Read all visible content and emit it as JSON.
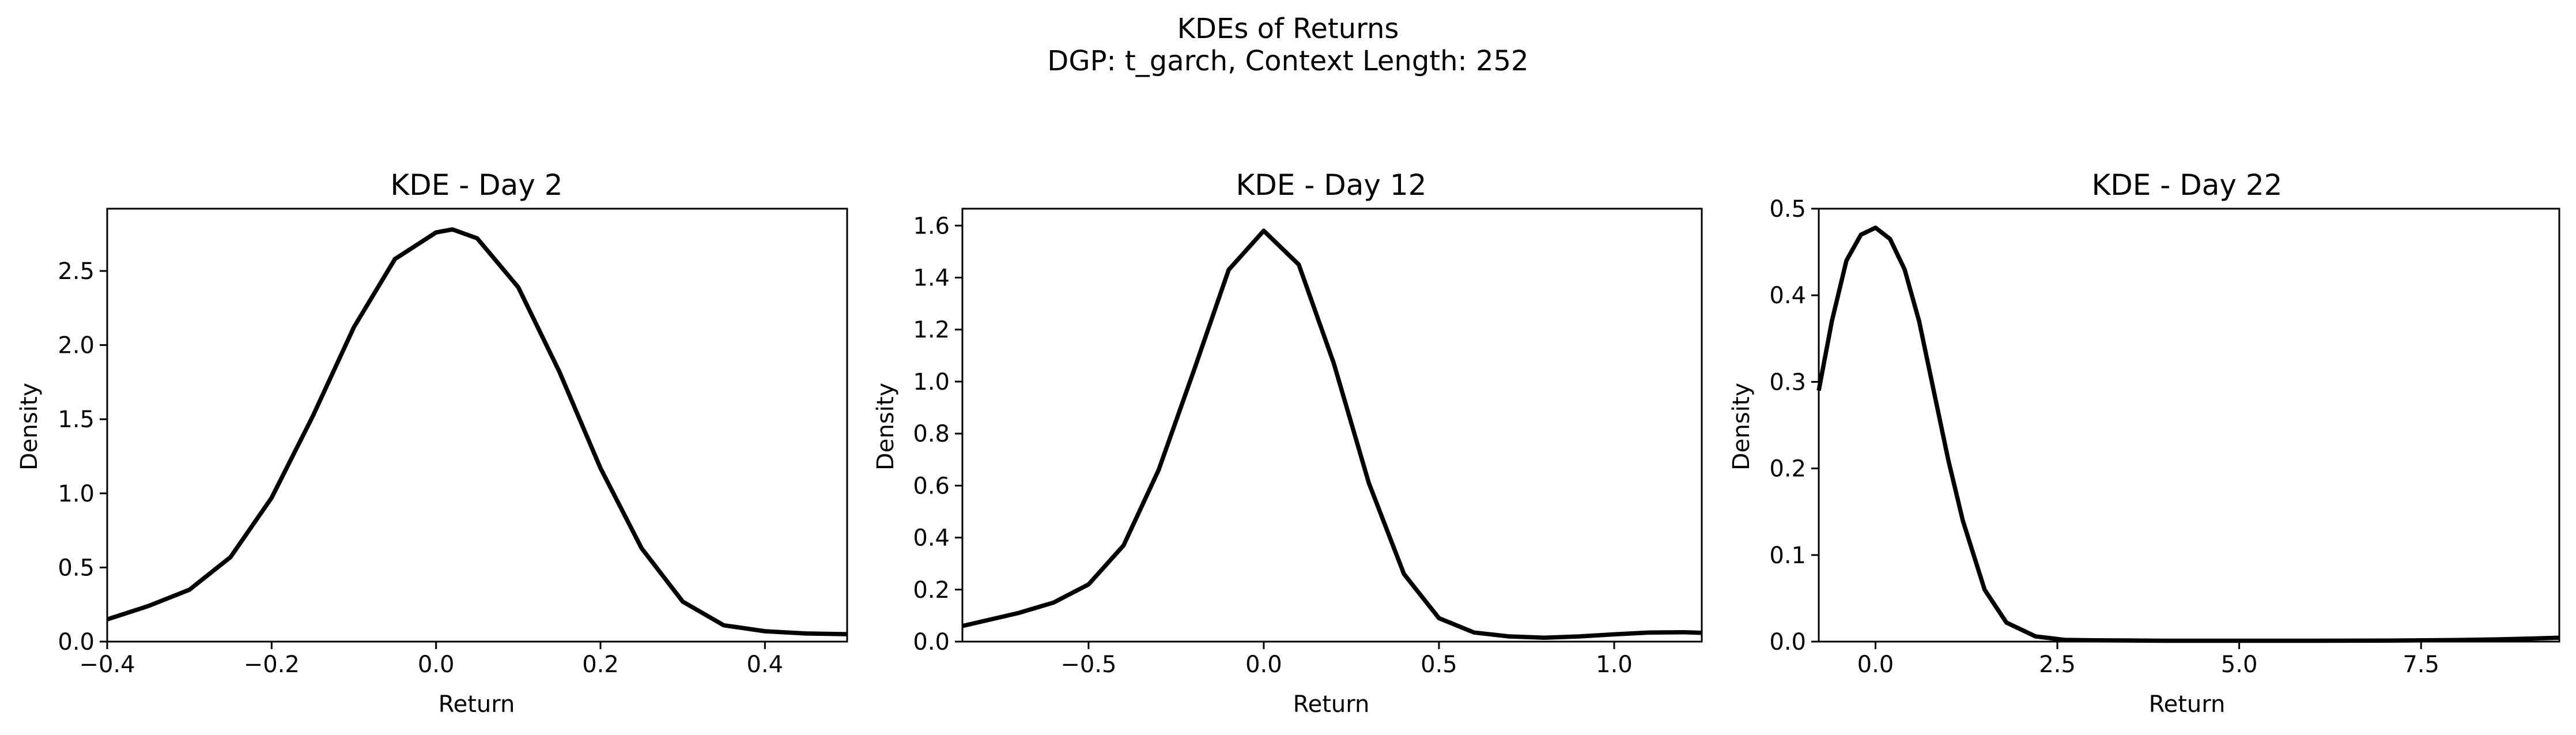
{
  "figure": {
    "title_line1": "KDEs of Returns",
    "title_line2": "DGP: t_garch, Context Length: 252"
  },
  "chart_data": [
    {
      "type": "line",
      "title": "KDE - Day 2",
      "xlabel": "Return",
      "ylabel": "Density",
      "xlim": [
        -0.4,
        0.5
      ],
      "ylim": [
        0,
        2.92
      ],
      "xticks": [
        -0.4,
        -0.2,
        0.0,
        0.2,
        0.4
      ],
      "xtick_labels": [
        "−0.4",
        "−0.2",
        "0.0",
        "0.2",
        "0.4"
      ],
      "yticks": [
        0.0,
        0.5,
        1.0,
        1.5,
        2.0,
        2.5
      ],
      "ytick_labels": [
        "0.0",
        "0.5",
        "1.0",
        "1.5",
        "2.0",
        "2.5"
      ],
      "grid": false,
      "series": [
        {
          "color": "#000000",
          "x": [
            -0.4,
            -0.35,
            -0.3,
            -0.25,
            -0.2,
            -0.15,
            -0.1,
            -0.05,
            0.0,
            0.02,
            0.05,
            0.1,
            0.15,
            0.2,
            0.25,
            0.3,
            0.35,
            0.4,
            0.45,
            0.5
          ],
          "y": [
            0.15,
            0.24,
            0.35,
            0.57,
            0.97,
            1.52,
            2.12,
            2.58,
            2.76,
            2.78,
            2.72,
            2.39,
            1.82,
            1.17,
            0.63,
            0.27,
            0.11,
            0.07,
            0.055,
            0.05
          ]
        }
      ]
    },
    {
      "type": "line",
      "title": "KDE - Day 12",
      "xlabel": "Return",
      "ylabel": "Density",
      "xlim": [
        -0.86,
        1.25
      ],
      "ylim": [
        0,
        1.665
      ],
      "xticks": [
        -0.5,
        0.0,
        0.5,
        1.0
      ],
      "xtick_labels": [
        "−0.5",
        "0.0",
        "0.5",
        "1.0"
      ],
      "yticks": [
        0.0,
        0.2,
        0.4,
        0.6,
        0.8,
        1.0,
        1.2,
        1.4,
        1.6
      ],
      "ytick_labels": [
        "0.0",
        "0.2",
        "0.4",
        "0.6",
        "0.8",
        "1.0",
        "1.2",
        "1.4",
        "1.6"
      ],
      "grid": false,
      "series": [
        {
          "color": "#000000",
          "x": [
            -0.86,
            -0.7,
            -0.6,
            -0.5,
            -0.4,
            -0.3,
            -0.2,
            -0.1,
            0.0,
            0.1,
            0.2,
            0.3,
            0.4,
            0.5,
            0.6,
            0.7,
            0.8,
            0.9,
            1.0,
            1.1,
            1.2,
            1.25
          ],
          "y": [
            0.06,
            0.11,
            0.15,
            0.22,
            0.37,
            0.66,
            1.04,
            1.43,
            1.58,
            1.45,
            1.07,
            0.61,
            0.26,
            0.09,
            0.035,
            0.02,
            0.015,
            0.02,
            0.028,
            0.035,
            0.036,
            0.034
          ]
        }
      ]
    },
    {
      "type": "line",
      "title": "KDE - Day 22",
      "xlabel": "Return",
      "ylabel": "Density",
      "xlim": [
        -0.78,
        9.4
      ],
      "ylim": [
        0,
        0.5
      ],
      "xticks": [
        0.0,
        2.5,
        5.0,
        7.5
      ],
      "xtick_labels": [
        "0.0",
        "2.5",
        "5.0",
        "7.5"
      ],
      "yticks": [
        0.0,
        0.1,
        0.2,
        0.3,
        0.4,
        0.5
      ],
      "ytick_labels": [
        "0.0",
        "0.1",
        "0.2",
        "0.3",
        "0.4",
        "0.5"
      ],
      "grid": false,
      "series": [
        {
          "color": "#000000",
          "x": [
            -0.78,
            -0.6,
            -0.4,
            -0.2,
            0.0,
            0.2,
            0.4,
            0.6,
            0.8,
            1.0,
            1.2,
            1.5,
            1.8,
            2.2,
            2.6,
            3.0,
            4.0,
            5.0,
            6.0,
            7.0,
            8.0,
            8.5,
            9.0,
            9.4
          ],
          "y": [
            0.29,
            0.37,
            0.44,
            0.47,
            0.478,
            0.465,
            0.43,
            0.37,
            0.29,
            0.21,
            0.14,
            0.06,
            0.022,
            0.006,
            0.002,
            0.0015,
            0.001,
            0.001,
            0.001,
            0.0012,
            0.0018,
            0.0025,
            0.0035,
            0.0045
          ]
        }
      ]
    }
  ]
}
